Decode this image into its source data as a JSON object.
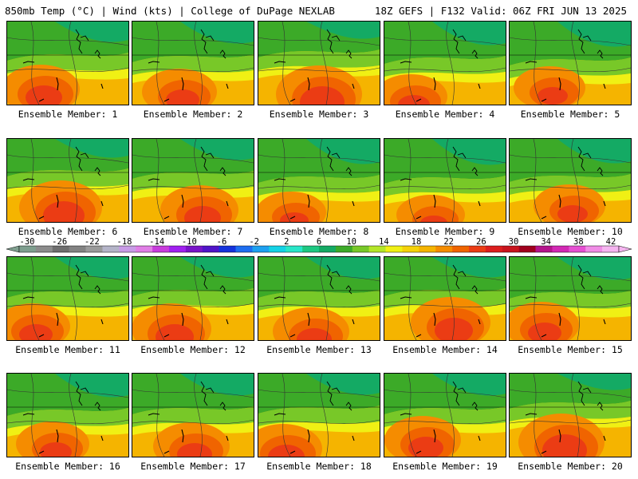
{
  "header": {
    "left_title": "850mb Temp (°C) | Wind (kts) | College of DuPage NEXLAB",
    "right_title": "18Z GEFS | F132 Valid: 06Z FRI JUN 13 2025"
  },
  "members": [
    {
      "label": "Ensemble Member: 1",
      "warmth": 0.62
    },
    {
      "label": "Ensemble Member: 2",
      "warmth": 0.55
    },
    {
      "label": "Ensemble Member: 3",
      "warmth": 0.78
    },
    {
      "label": "Ensemble Member: 4",
      "warmth": 0.5
    },
    {
      "label": "Ensemble Member: 5",
      "warmth": 0.45
    },
    {
      "label": "Ensemble Member: 6",
      "warmth": 0.7
    },
    {
      "label": "Ensemble Member: 7",
      "warmth": 0.6
    },
    {
      "label": "Ensemble Member: 8",
      "warmth": 0.42
    },
    {
      "label": "Ensemble Member: 9",
      "warmth": 0.4
    },
    {
      "label": "Ensemble Member: 10",
      "warmth": 0.48
    },
    {
      "label": "Ensemble Member: 11",
      "warmth": 0.55
    },
    {
      "label": "Ensemble Member: 12",
      "warmth": 0.63
    },
    {
      "label": "Ensemble Member: 13",
      "warmth": 0.58
    },
    {
      "label": "Ensemble Member: 14",
      "warmth": 0.65
    },
    {
      "label": "Ensemble Member: 15",
      "warmth": 0.52
    },
    {
      "label": "Ensemble Member: 16",
      "warmth": 0.5
    },
    {
      "label": "Ensemble Member: 17",
      "warmth": 0.56
    },
    {
      "label": "Ensemble Member: 18",
      "warmth": 0.6
    },
    {
      "label": "Ensemble Member: 19",
      "warmth": 0.57
    },
    {
      "label": "Ensemble Member: 20",
      "warmth": 0.8
    }
  ],
  "colorbar": {
    "ticks": [
      "-30",
      "-26",
      "-22",
      "-18",
      "-14",
      "-10",
      "-6",
      "-2",
      "2",
      "6",
      "10",
      "14",
      "18",
      "22",
      "26",
      "30",
      "34",
      "38",
      "42"
    ],
    "colors": [
      "#7f9f8f",
      "#8c8c8c",
      "#6e6e6e",
      "#828282",
      "#9a9a9a",
      "#b4b4c8",
      "#c89be6",
      "#e07ee6",
      "#c83cdc",
      "#a020f0",
      "#7814c8",
      "#5014c8",
      "#1432dc",
      "#1e6ef0",
      "#1ea0f0",
      "#14d2e6",
      "#28e6c8",
      "#1ec882",
      "#14aa64",
      "#3caa28",
      "#78c828",
      "#b4e628",
      "#f0f014",
      "#f5d20a",
      "#f5b400",
      "#f58c00",
      "#f06400",
      "#eb3c14",
      "#dc1e1e",
      "#c8141e",
      "#a0001e",
      "#b4148c",
      "#d228b4",
      "#e650d2",
      "#f08ce6",
      "#f5b4f0"
    ]
  }
}
